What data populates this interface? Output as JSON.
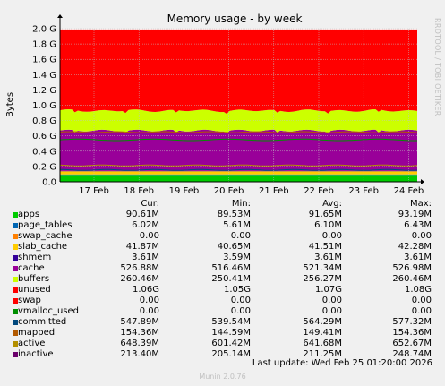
{
  "title": "Memory usage - by week",
  "side_note": "RRDTOOL / TOBI OETIKER",
  "footer": "Munin 2.0.76",
  "last_update": "Last update: Wed Feb 25 01:20:00 2026",
  "headers": {
    "cur": "Cur:",
    "min": "Min:",
    "avg": "Avg:",
    "max": "Max:"
  },
  "chart_data": {
    "type": "area",
    "title": "Memory usage - by week",
    "ylabel": "Bytes",
    "ylim": [
      0,
      2.0
    ],
    "yunit": "G",
    "yticks": [
      "0.0",
      "0.2 G",
      "0.4 G",
      "0.6 G",
      "0.8 G",
      "1.0 G",
      "1.2 G",
      "1.4 G",
      "1.6 G",
      "1.8 G",
      "2.0 G"
    ],
    "xticks": [
      "17 Feb",
      "18 Feb",
      "19 Feb",
      "20 Feb",
      "21 Feb",
      "22 Feb",
      "23 Feb",
      "24 Feb"
    ],
    "stacked_gb": [
      {
        "name": "apps",
        "color": "#00cc00",
        "value": 0.0906
      },
      {
        "name": "page_tables",
        "color": "#0066b3",
        "value": 0.006
      },
      {
        "name": "swap_cache",
        "color": "#ff8000",
        "value": 0
      },
      {
        "name": "slab_cache",
        "color": "#ffcc00",
        "value": 0.0419
      },
      {
        "name": "shmem",
        "color": "#330099",
        "value": 0.0036
      },
      {
        "name": "cache",
        "color": "#990099",
        "value": 0.5269
      },
      {
        "name": "buffers",
        "color": "#ccff00",
        "value": 0.2605
      },
      {
        "name": "unused",
        "color": "#ff0000",
        "value": 1.06
      }
    ],
    "lines_gb": [
      {
        "name": "committed",
        "color": "#008f00",
        "value": 0.5479
      },
      {
        "name": "mapped",
        "color": "#00487d",
        "value": 0.1544
      },
      {
        "name": "active",
        "color": "#b35a00",
        "value": 0.6484
      },
      {
        "name": "inactive",
        "color": "#b38f00",
        "value": 0.2134
      }
    ]
  },
  "legend": [
    {
      "name": "apps",
      "color": "#00cc00",
      "cur": "90.61M",
      "min": "89.53M",
      "avg": "91.65M",
      "max": "93.19M"
    },
    {
      "name": "page_tables",
      "color": "#0066b3",
      "cur": "6.02M",
      "min": "5.61M",
      "avg": "6.10M",
      "max": "6.43M"
    },
    {
      "name": "swap_cache",
      "color": "#ff8000",
      "cur": "0.00",
      "min": "0.00",
      "avg": "0.00",
      "max": "0.00"
    },
    {
      "name": "slab_cache",
      "color": "#ffcc00",
      "cur": "41.87M",
      "min": "40.65M",
      "avg": "41.51M",
      "max": "42.28M"
    },
    {
      "name": "shmem",
      "color": "#330099",
      "cur": "3.61M",
      "min": "3.59M",
      "avg": "3.61M",
      "max": "3.61M"
    },
    {
      "name": "cache",
      "color": "#990099",
      "cur": "526.88M",
      "min": "516.46M",
      "avg": "521.34M",
      "max": "526.98M"
    },
    {
      "name": "buffers",
      "color": "#ccff00",
      "cur": "260.46M",
      "min": "250.41M",
      "avg": "256.27M",
      "max": "260.46M"
    },
    {
      "name": "unused",
      "color": "#ff0000",
      "cur": "1.06G",
      "min": "1.05G",
      "avg": "1.07G",
      "max": "1.08G"
    },
    {
      "name": "swap",
      "color": "#ff0000",
      "cur": "0.00",
      "min": "0.00",
      "avg": "0.00",
      "max": "0.00"
    },
    {
      "name": "vmalloc_used",
      "color": "#008f00",
      "cur": "0.00",
      "min": "0.00",
      "avg": "0.00",
      "max": "0.00"
    },
    {
      "name": "committed",
      "color": "#00487d",
      "cur": "547.89M",
      "min": "539.54M",
      "avg": "564.29M",
      "max": "577.32M"
    },
    {
      "name": "mapped",
      "color": "#b35a00",
      "cur": "154.36M",
      "min": "144.59M",
      "avg": "149.41M",
      "max": "154.36M"
    },
    {
      "name": "active",
      "color": "#b38f00",
      "cur": "648.39M",
      "min": "601.42M",
      "avg": "641.68M",
      "max": "652.67M"
    },
    {
      "name": "inactive",
      "color": "#6b006b",
      "cur": "213.40M",
      "min": "205.14M",
      "avg": "211.25M",
      "max": "248.74M"
    }
  ]
}
